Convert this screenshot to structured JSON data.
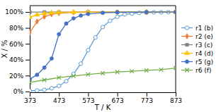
{
  "chart_data": {
    "type": "line",
    "xlabel": "T / K",
    "ylabel": "X / %",
    "xlim": [
      373,
      873
    ],
    "ylim": [
      -0.01,
      1.08
    ],
    "xticks": [
      373,
      473,
      573,
      673,
      773,
      873
    ],
    "yticks": [
      {
        "value": 0.0,
        "label": "0%"
      },
      {
        "value": 0.2,
        "label": "20%"
      },
      {
        "value": 0.4,
        "label": "40%"
      },
      {
        "value": 0.6,
        "label": "60%"
      },
      {
        "value": 0.8,
        "label": "80%"
      },
      {
        "value": 1.0,
        "label": "100%"
      }
    ],
    "grid": false,
    "legend": "right",
    "series": [
      {
        "name": "r1 (b)",
        "color": "#5b9bd5",
        "marker": "open-circle",
        "x": [
          373,
          398,
          423,
          448,
          473,
          498,
          523,
          548,
          573,
          598,
          623,
          648,
          673,
          698,
          723,
          748,
          773,
          798,
          823,
          848,
          873
        ],
        "values": [
          0.008,
          0.012,
          0.02,
          0.04,
          0.07,
          0.13,
          0.22,
          0.35,
          0.52,
          0.68,
          0.81,
          0.89,
          0.94,
          0.97,
          0.98,
          0.99,
          0.993,
          0.996,
          0.997,
          0.998,
          0.999
        ]
      },
      {
        "name": "r2 (e)",
        "color": "#ed7d31",
        "marker": "diamond",
        "x": [
          373,
          398,
          423,
          448,
          473,
          523,
          573,
          673,
          773,
          873
        ],
        "values": [
          0.74,
          0.88,
          0.94,
          0.97,
          0.985,
          0.995,
          0.997,
          0.999,
          0.999,
          0.999
        ]
      },
      {
        "name": "r3 (c)",
        "color": "#808080",
        "marker": "square",
        "x": [
          373,
          423,
          473,
          573,
          673,
          773,
          873
        ],
        "values": [
          0.999,
          0.999,
          0.999,
          0.999,
          0.999,
          0.999,
          0.999
        ]
      },
      {
        "name": "r4 (d)",
        "color": "#ffc000",
        "marker": "triangle",
        "x": [
          373,
          398,
          423,
          448,
          473,
          523,
          573,
          673,
          773,
          873
        ],
        "values": [
          0.935,
          0.965,
          0.98,
          0.99,
          0.995,
          0.998,
          0.999,
          0.999,
          0.999,
          0.999
        ]
      },
      {
        "name": "r5 (g)",
        "color": "#4472c4",
        "marker": "circle",
        "x": [
          373,
          398,
          423,
          448,
          473,
          498,
          523,
          548,
          573,
          623,
          673,
          773,
          873
        ],
        "values": [
          0.155,
          0.21,
          0.3,
          0.415,
          0.72,
          0.855,
          0.92,
          0.955,
          0.975,
          0.99,
          0.996,
          0.999,
          0.999
        ]
      },
      {
        "name": "r6 (f)",
        "color": "#70ad47",
        "marker": "x",
        "x": [
          373,
          423,
          473,
          523,
          573,
          623,
          673,
          723,
          773,
          823,
          873
        ],
        "values": [
          0.115,
          0.145,
          0.175,
          0.195,
          0.215,
          0.23,
          0.245,
          0.255,
          0.265,
          0.275,
          0.295
        ]
      }
    ]
  }
}
